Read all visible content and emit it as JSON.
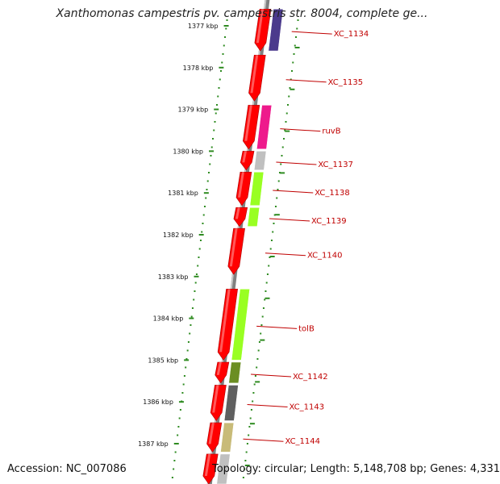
{
  "title": "Xanthomonas campestris pv. campestris str. 8004, complete ge...",
  "footer": {
    "accession": "Accession: NC_007086",
    "summary": "Topology: circular; Length: 5,148,708 bp; Genes: 4,331"
  },
  "colors": {
    "forward_gene": "#ff0000",
    "ruler_dots": "#2e8b20",
    "backbone": "#808080",
    "label": "#c00000"
  },
  "ruler": {
    "unit": "kbp",
    "ticks": [
      {
        "kbp": 1377,
        "label": "1377 kbp"
      },
      {
        "kbp": 1378,
        "label": "1378 kbp"
      },
      {
        "kbp": 1379,
        "label": "1379 kbp"
      },
      {
        "kbp": 1380,
        "label": "1380 kbp"
      },
      {
        "kbp": 1381,
        "label": "1381 kbp"
      },
      {
        "kbp": 1382,
        "label": "1382 kbp"
      },
      {
        "kbp": 1383,
        "label": "1383 kbp"
      },
      {
        "kbp": 1384,
        "label": "1384 kbp"
      },
      {
        "kbp": 1385,
        "label": "1385 kbp"
      },
      {
        "kbp": 1386,
        "label": "1386 kbp"
      },
      {
        "kbp": 1387,
        "label": "1387 kbp"
      }
    ]
  },
  "genes": [
    {
      "label": "XC_1134",
      "start": 1376.6,
      "end": 1377.6,
      "cat_color": "#4b3a8c"
    },
    {
      "label": "XC_1135",
      "start": 1377.7,
      "end": 1378.8,
      "cat_color": null
    },
    {
      "label": "ruvB",
      "start": 1378.9,
      "end": 1379.95,
      "cat_color": "#ee1a8c"
    },
    {
      "label": "XC_1137",
      "start": 1380.0,
      "end": 1380.45,
      "cat_color": "#c0c0c0"
    },
    {
      "label": "XC_1138",
      "start": 1380.5,
      "end": 1381.3,
      "cat_color": "#99ff22"
    },
    {
      "label": "XC_1139",
      "start": 1381.35,
      "end": 1381.8,
      "cat_color": "#99ff22"
    },
    {
      "label": "XC_1140",
      "start": 1381.85,
      "end": 1382.95,
      "cat_color": null
    },
    {
      "label": "tolB",
      "start": 1383.3,
      "end": 1385.0,
      "cat_color": "#99ff22"
    },
    {
      "label": "XC_1142",
      "start": 1385.05,
      "end": 1385.55,
      "cat_color": "#6b8e23"
    },
    {
      "label": "XC_1143",
      "start": 1385.6,
      "end": 1386.45,
      "cat_color": "#606060"
    },
    {
      "label": "XC_1144",
      "start": 1386.5,
      "end": 1387.2,
      "cat_color": "#c8bb78"
    },
    {
      "label": "",
      "start": 1387.25,
      "end": 1388.0,
      "cat_color": "#c0c0c0"
    }
  ]
}
